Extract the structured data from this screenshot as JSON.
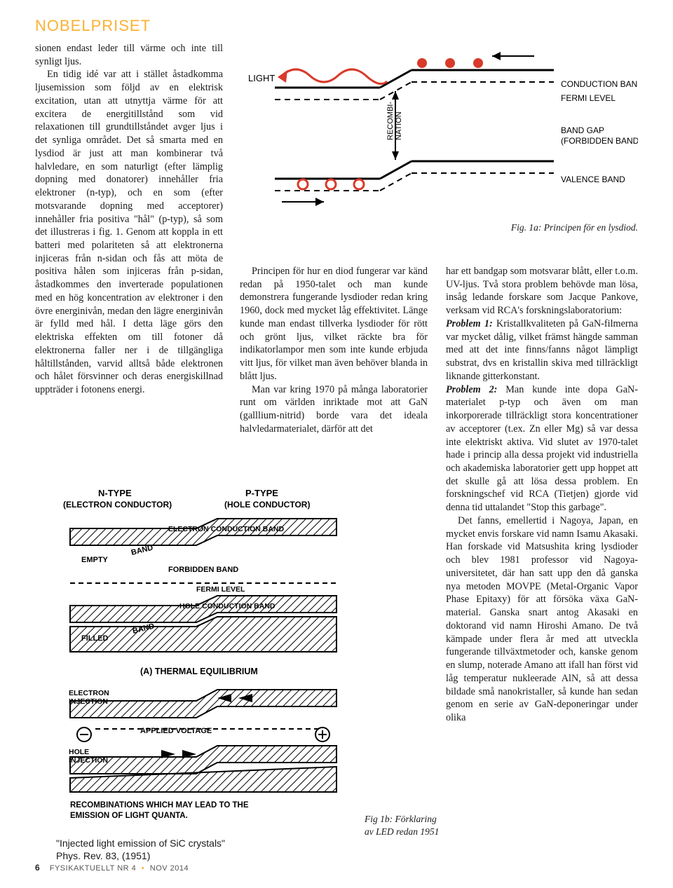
{
  "section_label": "NOBELPRISET",
  "col1": {
    "p1": "sionen endast leder till värme och inte till synligt ljus.",
    "p2": "En tidig idé var att i stället åstadkomma ljusemission som följd av en elektrisk excitation, utan att utnyttja värme för att excitera de energitillstånd som vid relaxationen till grundtillståndet avger ljus i det synliga området. Det så smarta med en lysdiod är just att man kombinerar två halvledare, en som naturligt (efter lämplig dopning med donatorer) innehåller fria elektroner (n-typ), och en som (efter motsvarande dopning med acceptorer) innehåller fria positiva \"hål\" (p-typ), så som det illustreras i fig. 1. Genom att koppla in ett batteri med polariteten så att elektronerna injiceras från n-sidan och fås att möta de positiva hålen som injiceras från p-sidan, åstadkommes den inverterade populationen med en hög koncentration av elektroner i den övre energinivån, medan den lägre energinivån är fylld med hål. I detta läge görs den elektriska effekten om till fotoner då elektronerna faller ner i de tillgängliga håltillstånden, varvid alltså både elektronen och hålet försvinner och deras energiskillnad uppträder i fotonens energi."
  },
  "col2": {
    "p1": "Principen för hur en diod fungerar var känd redan på 1950-talet och man kunde demonstrera fungerande lysdioder redan kring 1960, dock med mycket låg effektivitet. Länge kunde man endast tillverka lysdioder för rött och grönt ljus, vilket räckte bra för indikatorlampor men som inte kunde erbjuda vitt ljus, för vilket man även behöver blanda in blått ljus.",
    "p2": "Man var kring 1970 på många laboratorier runt om världen inriktade mot att GaN (galllium-nitrid) borde vara det ideala halvledarmaterialet, därför att det"
  },
  "col3": {
    "p1": "har ett bandgap som motsvarar blått, eller t.o.m. UV-ljus. Två stora problem behövde man lösa, insåg ledande forskare som Jacque Pankove, verksam vid RCA's forskningslaboratorium:",
    "problem1_label": "Problem 1:",
    "p2": " Kristallkvaliteten på GaN-filmerna var mycket dålig, vilket främst hängde samman med att det inte finns/fanns något lämpligt substrat, dvs en kristallin skiva med tillräckligt liknande gitterkonstant.",
    "problem2_label": "Problem 2:",
    "p3": " Man kunde inte dopa GaN-materialet p-typ och även om man inkorporerade tillräckligt stora koncentrationer av acceptorer (t.ex. Zn eller Mg) så var dessa inte elektriskt aktiva. Vid slutet av 1970-talet hade i princip alla dessa projekt vid industriella och akademiska laboratorier gett upp hoppet att det skulle gå att lösa dessa problem. En forskningschef vid RCA (Tietjen) gjorde vid denna tid uttalandet \"Stop this garbage\".",
    "p4": "Det fanns, emellertid i Nagoya, Japan, en mycket envis forskare vid namn Isamu Akasaki. Han forskade vid Matsushita kring lysdioder och blev 1981 professor vid Nagoya-universitetet, där han satt upp den då ganska nya metoden MOVPE (Metal-Organic Vapor Phase Epitaxy) för att försöka växa GaN-material. Ganska snart antog Akasaki en doktorand vid namn Hiroshi Amano. De två kämpade under flera år med att utveckla fungerande tillväxtmetoder och, kanske genom en slump, noterade Amano att ifall han först vid låg temperatur nukleerade AlN, så att dessa bildade små nanokristaller, så kunde han sedan genom en serie av GaN-deponeringar under olika"
  },
  "fig1a": {
    "caption": "Fig. 1a: Principen för en lysdiod.",
    "labels": {
      "light": "LIGHT",
      "cond": "CONDUCTION BAND",
      "fermi": "FERMI LEVEL",
      "gap": "BAND GAP\n(FORBIDDEN BAND)",
      "valence": "VALENCE BAND",
      "recomb": "RECOMBI-\nNATION"
    },
    "colors": {
      "red": "#d83a2b",
      "line": "#000000"
    }
  },
  "fig1b": {
    "caption": "Fig 1b: Förklaring av LED redan 1951",
    "labels": {
      "ntype": "N-TYPE\n(ELECTRON CONDUCTOR)",
      "ptype": "P-TYPE\n(HOLE CONDUCTOR)",
      "econd": "ELECTRON  CONDUCTION  BAND",
      "empty": "EMPTY",
      "band1": "BAND",
      "forbidden": "FORBIDDEN  BAND",
      "fermi": "FERMI  LEVEL",
      "holecond": "HOLE  CONDUCTION  BAND",
      "filled": "FILLED",
      "band2": "BAND",
      "thermal": "(A)  THERMAL  EQUILIBRIUM",
      "einj": "ELECTRON\nINJECTION",
      "applied": "APPLIED  VOLTAGE",
      "hinj": "HOLE\nINJECTION",
      "recomb": "RECOMBINATIONS  WHICH  MAY  LEAD  TO  THE\nEMISSION  OF  LIGHT  QUANTA.",
      "quote": "\"Injected light emission of SiC crystals\"\nPhys. Rev. 83, (1951)"
    }
  },
  "footer": {
    "page": "6",
    "mag": "FYSIKAKTUELLT NR 4",
    "date": "NOV 2014"
  }
}
